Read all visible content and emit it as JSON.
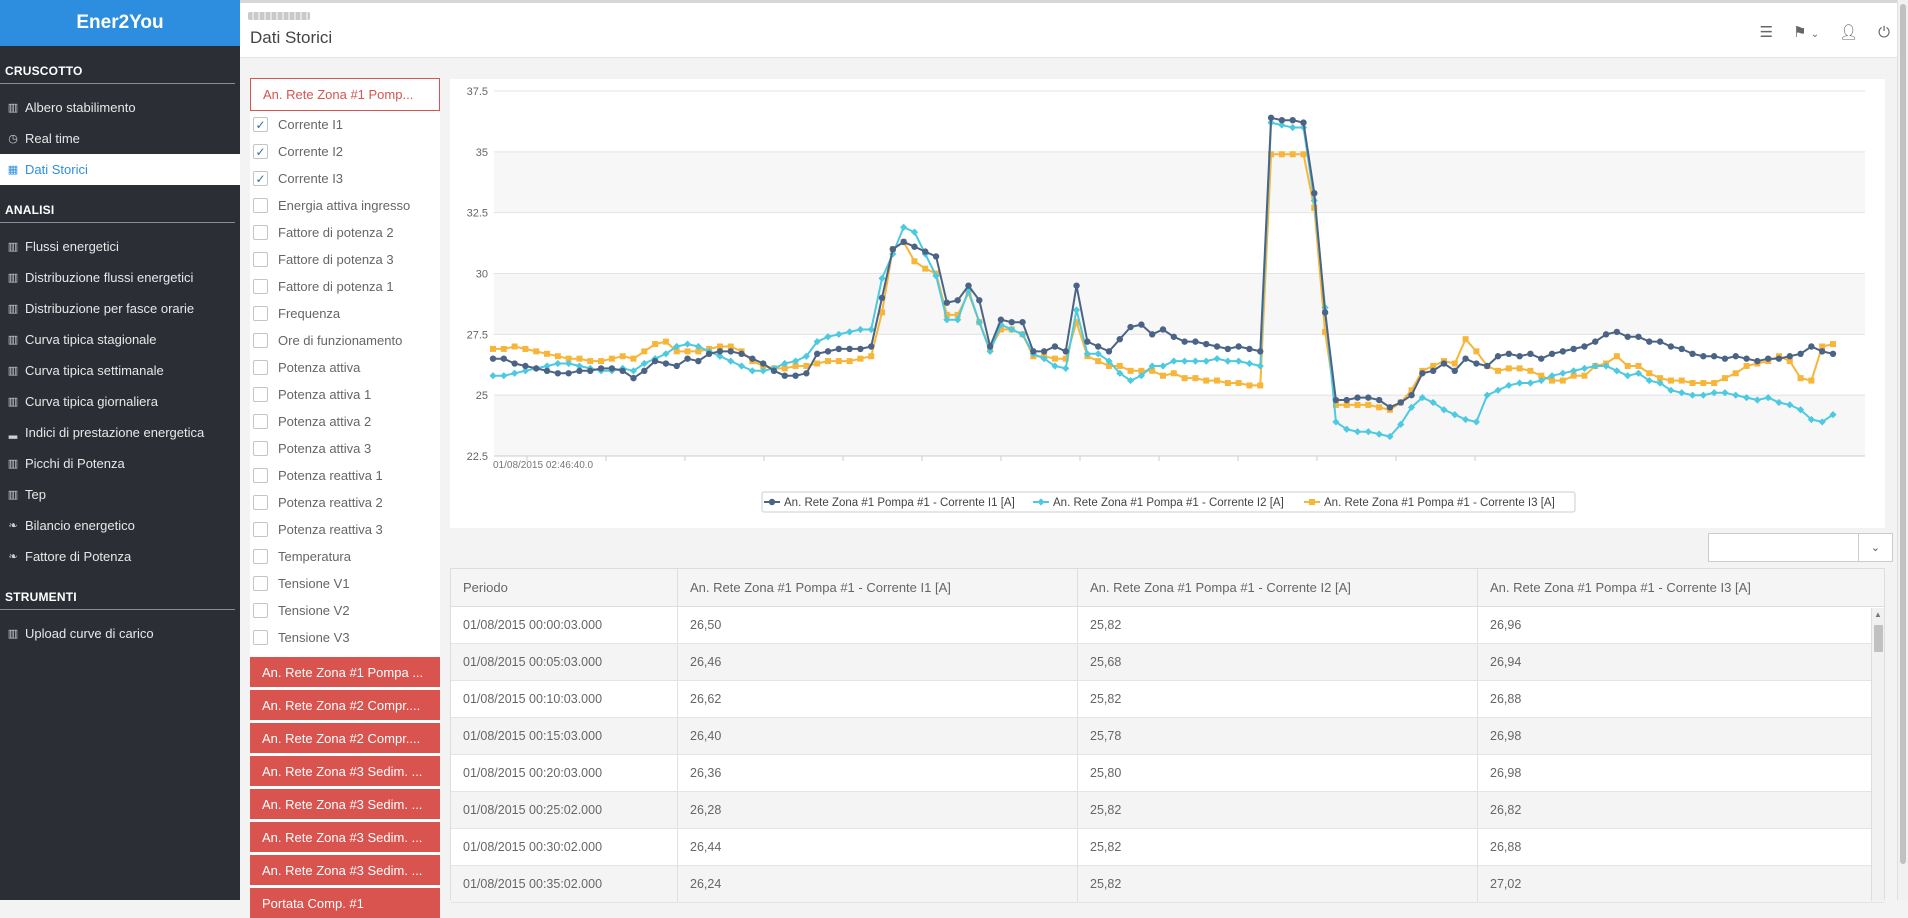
{
  "app": {
    "brand": "Ener2You"
  },
  "header": {
    "page_title": "Dati Storici"
  },
  "sidebar": {
    "sections": [
      {
        "title": "CRUSCOTTO",
        "items": [
          {
            "label": "Albero stabilimento",
            "icon": "bar-chart-icon"
          },
          {
            "label": "Real time",
            "icon": "clock-icon"
          },
          {
            "label": "Dati Storici",
            "icon": "calendar-icon",
            "active": true
          }
        ]
      },
      {
        "title": "ANALISI",
        "items": [
          {
            "label": "Flussi energetici",
            "icon": "bar-chart-icon"
          },
          {
            "label": "Distribuzione flussi energetici",
            "icon": "bar-chart-icon"
          },
          {
            "label": "Distribuzione per fasce orarie",
            "icon": "bar-chart-icon"
          },
          {
            "label": "Curva tipica stagionale",
            "icon": "bar-chart-icon"
          },
          {
            "label": "Curva tipica settimanale",
            "icon": "bar-chart-icon"
          },
          {
            "label": "Curva tipica giornaliera",
            "icon": "bar-chart-icon"
          },
          {
            "label": "Indici di prestazione energetica",
            "icon": "signal-icon"
          },
          {
            "label": "Picchi di Potenza",
            "icon": "bar-chart-icon"
          },
          {
            "label": "Tep",
            "icon": "bar-chart-icon"
          },
          {
            "label": "Bilancio energetico",
            "icon": "leaf-icon"
          },
          {
            "label": "Fattore di Potenza",
            "icon": "leaf-icon"
          }
        ]
      },
      {
        "title": "STRUMENTI",
        "items": [
          {
            "label": "Upload curve di carico",
            "icon": "bar-chart-icon"
          }
        ]
      }
    ]
  },
  "params": {
    "header": "An. Rete Zona #1 Pomp...",
    "checks": [
      {
        "label": "Corrente I1",
        "checked": true
      },
      {
        "label": "Corrente I2",
        "checked": true
      },
      {
        "label": "Corrente I3",
        "checked": true
      },
      {
        "label": "Energia attiva ingresso",
        "checked": false
      },
      {
        "label": "Fattore di potenza 2",
        "checked": false
      },
      {
        "label": "Fattore di potenza 3",
        "checked": false
      },
      {
        "label": "Fattore di potenza 1",
        "checked": false
      },
      {
        "label": "Frequenza",
        "checked": false
      },
      {
        "label": "Ore di funzionamento",
        "checked": false
      },
      {
        "label": "Potenza attiva",
        "checked": false
      },
      {
        "label": "Potenza attiva 1",
        "checked": false
      },
      {
        "label": "Potenza attiva 2",
        "checked": false
      },
      {
        "label": "Potenza attiva 3",
        "checked": false
      },
      {
        "label": "Potenza reattiva 1",
        "checked": false
      },
      {
        "label": "Potenza reattiva 2",
        "checked": false
      },
      {
        "label": "Potenza reattiva 3",
        "checked": false
      },
      {
        "label": "Temperatura",
        "checked": false
      },
      {
        "label": "Tensione V1",
        "checked": false
      },
      {
        "label": "Tensione V2",
        "checked": false
      },
      {
        "label": "Tensione V3",
        "checked": false
      }
    ],
    "groups": [
      "An. Rete Zona #1 Pompa ...",
      "An. Rete Zona #2 Compr....",
      "An. Rete Zona #2 Compr....",
      "An. Rete Zona #3 Sedim. ...",
      "An. Rete Zona #3 Sedim. ...",
      "An. Rete Zona #3 Sedim. ...",
      "An. Rete Zona #3 Sedim. ...",
      "Portata Comp. #1"
    ]
  },
  "chart_data": {
    "type": "line",
    "x_start_label": "01/08/2015 02:46:40.0",
    "ylim": [
      22.5,
      37.5
    ],
    "yticks": [
      "37.5",
      "35",
      "32.5",
      "30",
      "27.5",
      "25",
      "22.5"
    ],
    "grid": true,
    "legend_position": "bottom",
    "series": [
      {
        "name": "An. Rete Zona #1 Pompa #1 - Corrente I1 [A]",
        "color": "#4b6486",
        "values": [
          26.5,
          26.5,
          26.3,
          26.2,
          26.1,
          26.0,
          25.9,
          25.9,
          26.0,
          26.0,
          26.1,
          26.1,
          26.0,
          25.7,
          26.0,
          26.4,
          26.3,
          26.2,
          26.5,
          26.4,
          26.7,
          26.8,
          26.8,
          26.7,
          26.5,
          26.3,
          26.0,
          25.8,
          25.8,
          25.9,
          26.7,
          26.8,
          26.9,
          26.9,
          26.9,
          27.0,
          29.0,
          31.0,
          31.3,
          31.1,
          30.9,
          30.7,
          28.8,
          28.9,
          29.5,
          28.9,
          27.0,
          28.1,
          28.0,
          28.0,
          26.8,
          26.8,
          27.0,
          26.8,
          29.5,
          27.2,
          27.0,
          26.8,
          27.3,
          27.8,
          27.9,
          27.5,
          27.7,
          27.4,
          27.2,
          27.2,
          27.1,
          27.0,
          26.9,
          27.0,
          26.9,
          26.8,
          36.4,
          36.3,
          36.3,
          36.2,
          33.3,
          28.4,
          24.8,
          24.8,
          24.9,
          24.9,
          24.8,
          24.5,
          24.7,
          25.0,
          25.9,
          26.0,
          26.3,
          26.0,
          26.5,
          26.3,
          26.2,
          26.6,
          26.7,
          26.6,
          26.7,
          26.5,
          26.7,
          26.8,
          26.9,
          27.0,
          27.2,
          27.5,
          27.6,
          27.4,
          27.4,
          27.2,
          27.2,
          27.0,
          26.9,
          26.7,
          26.6,
          26.6,
          26.5,
          26.6,
          26.5,
          26.4,
          26.5,
          26.5,
          26.6,
          26.7,
          27.0,
          26.8,
          26.7
        ]
      },
      {
        "name": "An. Rete Zona #1 Pompa #1 - Corrente I2 [A]",
        "color": "#4dc9e0",
        "values": [
          25.8,
          25.8,
          25.9,
          26.0,
          26.1,
          26.2,
          26.3,
          26.3,
          26.2,
          26.1,
          26.0,
          26.0,
          26.1,
          26.0,
          26.3,
          26.5,
          26.7,
          27.0,
          27.1,
          27.0,
          26.8,
          26.6,
          26.4,
          26.2,
          26.0,
          26.0,
          26.1,
          26.3,
          26.4,
          26.6,
          27.2,
          27.4,
          27.5,
          27.6,
          27.7,
          27.7,
          29.8,
          30.8,
          31.9,
          31.7,
          30.8,
          29.9,
          28.1,
          28.1,
          29.3,
          28.0,
          26.8,
          27.9,
          27.7,
          27.5,
          26.7,
          26.5,
          26.2,
          26.1,
          28.5,
          26.7,
          26.7,
          26.4,
          25.9,
          25.6,
          25.8,
          26.2,
          26.2,
          26.4,
          26.4,
          26.4,
          26.4,
          26.5,
          26.4,
          26.4,
          26.3,
          26.2,
          36.2,
          36.1,
          36.0,
          36.0,
          33.0,
          28.6,
          23.9,
          23.6,
          23.5,
          23.5,
          23.4,
          23.3,
          23.8,
          24.5,
          24.9,
          24.7,
          24.4,
          24.2,
          24.0,
          23.9,
          25.0,
          25.2,
          25.4,
          25.5,
          25.5,
          25.6,
          25.8,
          25.9,
          26.0,
          26.1,
          26.2,
          26.2,
          26.0,
          25.8,
          25.9,
          25.6,
          25.5,
          25.2,
          25.1,
          25.0,
          25.0,
          25.1,
          25.1,
          25.0,
          24.9,
          24.8,
          24.9,
          24.7,
          24.6,
          24.4,
          24.0,
          23.9,
          24.2
        ]
      },
      {
        "name": "An. Rete Zona #1 Pompa #1 - Corrente I3 [A]",
        "color": "#f7b53a",
        "values": [
          26.9,
          26.9,
          27.0,
          26.9,
          26.8,
          26.7,
          26.6,
          26.5,
          26.5,
          26.4,
          26.4,
          26.5,
          26.6,
          26.5,
          26.8,
          27.1,
          27.2,
          26.8,
          26.8,
          26.8,
          26.9,
          27.0,
          27.0,
          26.8,
          26.4,
          26.2,
          26.1,
          26.1,
          26.2,
          26.2,
          26.3,
          26.4,
          26.4,
          26.4,
          26.5,
          26.6,
          28.4,
          31.0,
          31.3,
          30.5,
          30.2,
          30.0,
          28.3,
          28.3,
          29.2,
          28.0,
          26.9,
          27.7,
          27.7,
          27.5,
          26.6,
          26.6,
          26.5,
          26.5,
          28.0,
          26.6,
          26.4,
          26.2,
          26.2,
          26.0,
          26.0,
          26.0,
          25.8,
          25.9,
          25.7,
          25.7,
          25.6,
          25.6,
          25.5,
          25.5,
          25.4,
          25.4,
          34.9,
          34.9,
          34.9,
          34.9,
          32.7,
          27.6,
          24.6,
          24.6,
          24.6,
          24.6,
          24.5,
          24.4,
          24.7,
          25.2,
          26.0,
          26.2,
          26.4,
          26.3,
          27.3,
          26.8,
          26.2,
          26.0,
          26.1,
          26.1,
          26.0,
          25.8,
          25.6,
          25.6,
          25.8,
          25.8,
          26.2,
          26.3,
          26.6,
          26.2,
          26.2,
          25.9,
          25.7,
          25.6,
          25.6,
          25.5,
          25.5,
          25.5,
          25.7,
          25.9,
          26.2,
          26.3,
          26.4,
          26.6,
          26.4,
          25.7,
          25.6,
          27.0,
          27.1
        ]
      }
    ]
  },
  "select": {
    "value": ""
  },
  "table": {
    "columns": [
      "Periodo",
      "An. Rete Zona #1 Pompa #1 - Corrente I1 [A]",
      "An. Rete Zona #1 Pompa #1 - Corrente I2 [A]",
      "An. Rete Zona #1 Pompa #1 - Corrente I3 [A]"
    ],
    "rows": [
      [
        "01/08/2015 00:00:03.000",
        "26,50",
        "25,82",
        "26,96"
      ],
      [
        "01/08/2015 00:05:03.000",
        "26,46",
        "25,68",
        "26,94"
      ],
      [
        "01/08/2015 00:10:03.000",
        "26,62",
        "25,82",
        "26,88"
      ],
      [
        "01/08/2015 00:15:03.000",
        "26,40",
        "25,78",
        "26,98"
      ],
      [
        "01/08/2015 00:20:03.000",
        "26,36",
        "25,80",
        "26,98"
      ],
      [
        "01/08/2015 00:25:02.000",
        "26,28",
        "25,82",
        "26,82"
      ],
      [
        "01/08/2015 00:30:02.000",
        "26,44",
        "25,82",
        "26,88"
      ],
      [
        "01/08/2015 00:35:02.000",
        "26,24",
        "25,82",
        "27,02"
      ]
    ]
  }
}
